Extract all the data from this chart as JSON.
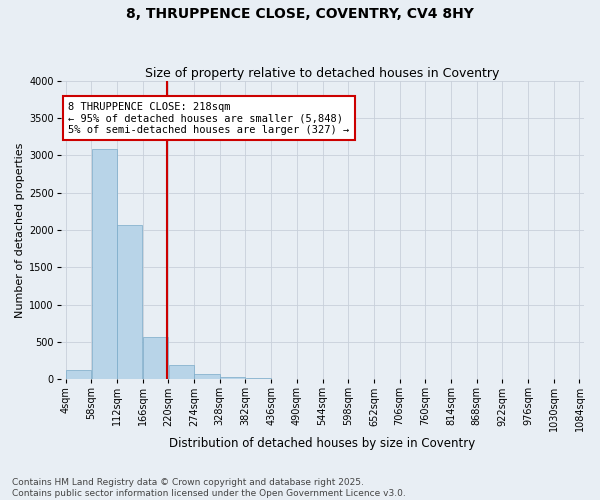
{
  "title": "8, THRUPPENCE CLOSE, COVENTRY, CV4 8HY",
  "subtitle": "Size of property relative to detached houses in Coventry",
  "xlabel": "Distribution of detached houses by size in Coventry",
  "ylabel": "Number of detached properties",
  "bar_color": "#b8d4e8",
  "bar_edge_color": "#7aaac8",
  "bins": [
    4,
    58,
    112,
    166,
    220,
    274,
    328,
    382,
    436,
    490,
    544,
    598,
    652,
    706,
    760,
    814,
    868,
    922,
    976,
    1030,
    1084
  ],
  "values": [
    130,
    3080,
    2070,
    560,
    185,
    65,
    35,
    15,
    5,
    2,
    1,
    0,
    0,
    0,
    0,
    0,
    0,
    0,
    0,
    0
  ],
  "property_size": 218,
  "vline_color": "#cc0000",
  "annotation_text": "8 THRUPPENCE CLOSE: 218sqm\n← 95% of detached houses are smaller (5,848)\n5% of semi-detached houses are larger (327) →",
  "annotation_box_color": "#ffffff",
  "annotation_box_edge": "#cc0000",
  "ylim": [
    0,
    4000
  ],
  "yticks": [
    0,
    500,
    1000,
    1500,
    2000,
    2500,
    3000,
    3500,
    4000
  ],
  "grid_color": "#c8d0da",
  "bg_color": "#e8eef4",
  "footnote": "Contains HM Land Registry data © Crown copyright and database right 2025.\nContains public sector information licensed under the Open Government Licence v3.0.",
  "title_fontsize": 10,
  "subtitle_fontsize": 9,
  "xlabel_fontsize": 8.5,
  "ylabel_fontsize": 8,
  "tick_fontsize": 7,
  "annotation_fontsize": 7.5,
  "footnote_fontsize": 6.5
}
